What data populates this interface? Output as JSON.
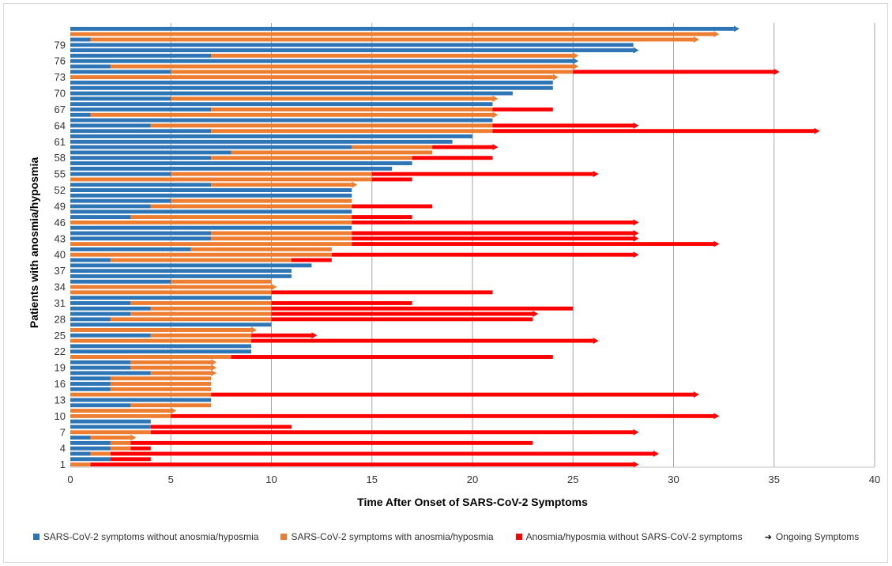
{
  "chart_data": {
    "type": "bar",
    "orientation": "horizontal-stacked",
    "xlabel": "Time After Onset of SARS-CoV-2 Symptoms",
    "ylabel": "Patients with anosmia/hyposmia",
    "xlim": [
      0,
      40
    ],
    "xticks": [
      0,
      5,
      10,
      15,
      20,
      25,
      30,
      35,
      40
    ],
    "ylim": [
      1,
      81
    ],
    "yticks": [
      1,
      4,
      7,
      10,
      13,
      16,
      19,
      22,
      25,
      28,
      31,
      34,
      37,
      40,
      43,
      46,
      49,
      52,
      55,
      58,
      61,
      64,
      67,
      70,
      73,
      76,
      79
    ],
    "grid": "vertical",
    "legend_position": "bottom",
    "series": [
      {
        "name": "SARS-CoV-2 symptoms without anosmia/hyposmia",
        "color": "#2e75b6"
      },
      {
        "name": "SARS-CoV-2 symptoms with anosmia/hyposmia",
        "color": "#ed7d31"
      },
      {
        "name": "Anosmia/hyposmia without SARS-CoV-2 symptoms",
        "color": "#ff0000"
      }
    ],
    "ongoing_label": "Ongoing Symptoms",
    "patients": [
      {
        "id": 1,
        "blue": 0,
        "orange": 1,
        "red": 27,
        "ongoing": true
      },
      {
        "id": 2,
        "blue": 2,
        "orange": 0,
        "red": 2,
        "ongoing": false
      },
      {
        "id": 3,
        "blue": 1,
        "orange": 1,
        "red": 27,
        "ongoing": true
      },
      {
        "id": 4,
        "blue": 2,
        "orange": 1,
        "red": 1,
        "ongoing": false
      },
      {
        "id": 5,
        "blue": 2,
        "orange": 1,
        "red": 20,
        "ongoing": false
      },
      {
        "id": 6,
        "blue": 1,
        "orange": 2,
        "red": 0,
        "ongoing": true
      },
      {
        "id": 7,
        "blue": 0,
        "orange": 4,
        "red": 24,
        "ongoing": true
      },
      {
        "id": 8,
        "blue": 4,
        "orange": 0,
        "red": 7,
        "ongoing": false
      },
      {
        "id": 9,
        "blue": 4,
        "orange": 0,
        "red": 0,
        "ongoing": false
      },
      {
        "id": 10,
        "blue": 0,
        "orange": 5,
        "red": 27,
        "ongoing": true
      },
      {
        "id": 11,
        "blue": 0,
        "orange": 5,
        "red": 0,
        "ongoing": true
      },
      {
        "id": 12,
        "blue": 3,
        "orange": 4,
        "red": 0,
        "ongoing": false
      },
      {
        "id": 13,
        "blue": 7,
        "orange": 0,
        "red": 0,
        "ongoing": false
      },
      {
        "id": 14,
        "blue": 0,
        "orange": 7,
        "red": 24,
        "ongoing": true
      },
      {
        "id": 15,
        "blue": 2,
        "orange": 5,
        "red": 0,
        "ongoing": false
      },
      {
        "id": 16,
        "blue": 2,
        "orange": 5,
        "red": 0,
        "ongoing": false
      },
      {
        "id": 17,
        "blue": 2,
        "orange": 5,
        "red": 0,
        "ongoing": false
      },
      {
        "id": 18,
        "blue": 4,
        "orange": 3,
        "red": 0,
        "ongoing": true
      },
      {
        "id": 19,
        "blue": 3,
        "orange": 4,
        "red": 0,
        "ongoing": true
      },
      {
        "id": 20,
        "blue": 3,
        "orange": 4,
        "red": 0,
        "ongoing": true
      },
      {
        "id": 21,
        "blue": 0,
        "orange": 8,
        "red": 16,
        "ongoing": false
      },
      {
        "id": 22,
        "blue": 9,
        "orange": 0,
        "red": 0,
        "ongoing": false
      },
      {
        "id": 23,
        "blue": 9,
        "orange": 0,
        "red": 0,
        "ongoing": false
      },
      {
        "id": 24,
        "blue": 0,
        "orange": 9,
        "red": 17,
        "ongoing": true
      },
      {
        "id": 25,
        "blue": 4,
        "orange": 5,
        "red": 3,
        "ongoing": true
      },
      {
        "id": 26,
        "blue": 0,
        "orange": 9,
        "red": 0,
        "ongoing": true
      },
      {
        "id": 27,
        "blue": 10,
        "orange": 0,
        "red": 0,
        "ongoing": false
      },
      {
        "id": 28,
        "blue": 2,
        "orange": 8,
        "red": 13,
        "ongoing": false
      },
      {
        "id": 29,
        "blue": 3,
        "orange": 7,
        "red": 13,
        "ongoing": true
      },
      {
        "id": 30,
        "blue": 4,
        "orange": 6,
        "red": 15,
        "ongoing": false
      },
      {
        "id": 31,
        "blue": 3,
        "orange": 7,
        "red": 7,
        "ongoing": false
      },
      {
        "id": 32,
        "blue": 10,
        "orange": 0,
        "red": 0,
        "ongoing": false
      },
      {
        "id": 33,
        "blue": 0,
        "orange": 10,
        "red": 11,
        "ongoing": false
      },
      {
        "id": 34,
        "blue": 0,
        "orange": 10,
        "red": 0,
        "ongoing": true
      },
      {
        "id": 35,
        "blue": 5,
        "orange": 5,
        "red": 0,
        "ongoing": false
      },
      {
        "id": 36,
        "blue": 11,
        "orange": 0,
        "red": 0,
        "ongoing": false
      },
      {
        "id": 37,
        "blue": 11,
        "orange": 0,
        "red": 0,
        "ongoing": false
      },
      {
        "id": 38,
        "blue": 12,
        "orange": 0,
        "red": 0,
        "ongoing": false
      },
      {
        "id": 39,
        "blue": 2,
        "orange": 9,
        "red": 2,
        "ongoing": false
      },
      {
        "id": 40,
        "blue": 0,
        "orange": 13,
        "red": 15,
        "ongoing": true
      },
      {
        "id": 41,
        "blue": 6,
        "orange": 7,
        "red": 0,
        "ongoing": false
      },
      {
        "id": 42,
        "blue": 0,
        "orange": 14,
        "red": 18,
        "ongoing": true
      },
      {
        "id": 43,
        "blue": 7,
        "orange": 7,
        "red": 14,
        "ongoing": true
      },
      {
        "id": 44,
        "blue": 7,
        "orange": 7,
        "red": 14,
        "ongoing": true
      },
      {
        "id": 45,
        "blue": 14,
        "orange": 0,
        "red": 0,
        "ongoing": false
      },
      {
        "id": 46,
        "blue": 0,
        "orange": 14,
        "red": 14,
        "ongoing": true
      },
      {
        "id": 47,
        "blue": 3,
        "orange": 11,
        "red": 3,
        "ongoing": false
      },
      {
        "id": 48,
        "blue": 14,
        "orange": 0,
        "red": 0,
        "ongoing": false
      },
      {
        "id": 49,
        "blue": 4,
        "orange": 10,
        "red": 4,
        "ongoing": false
      },
      {
        "id": 50,
        "blue": 5,
        "orange": 9,
        "red": 0,
        "ongoing": false
      },
      {
        "id": 51,
        "blue": 14,
        "orange": 0,
        "red": 0,
        "ongoing": false
      },
      {
        "id": 52,
        "blue": 14,
        "orange": 0,
        "red": 0,
        "ongoing": false
      },
      {
        "id": 53,
        "blue": 7,
        "orange": 7,
        "red": 0,
        "ongoing": true
      },
      {
        "id": 54,
        "blue": 0,
        "orange": 15,
        "red": 2,
        "ongoing": false
      },
      {
        "id": 55,
        "blue": 5,
        "orange": 10,
        "red": 11,
        "ongoing": true
      },
      {
        "id": 56,
        "blue": 16,
        "orange": 0,
        "red": 0,
        "ongoing": false
      },
      {
        "id": 57,
        "blue": 17,
        "orange": 0,
        "red": 0,
        "ongoing": false
      },
      {
        "id": 58,
        "blue": 7,
        "orange": 10,
        "red": 4,
        "ongoing": false
      },
      {
        "id": 59,
        "blue": 8,
        "orange": 10,
        "red": 0,
        "ongoing": false
      },
      {
        "id": 60,
        "blue": 14,
        "orange": 4,
        "red": 3,
        "ongoing": true
      },
      {
        "id": 61,
        "blue": 19,
        "orange": 0,
        "red": 0,
        "ongoing": false
      },
      {
        "id": 62,
        "blue": 20,
        "orange": 0,
        "red": 0,
        "ongoing": false
      },
      {
        "id": 63,
        "blue": 7,
        "orange": 14,
        "red": 16,
        "ongoing": true
      },
      {
        "id": 64,
        "blue": 4,
        "orange": 17,
        "red": 7,
        "ongoing": true
      },
      {
        "id": 65,
        "blue": 21,
        "orange": 0,
        "red": 0,
        "ongoing": false
      },
      {
        "id": 66,
        "blue": 1,
        "orange": 20,
        "red": 0,
        "ongoing": true
      },
      {
        "id": 67,
        "blue": 7,
        "orange": 14,
        "red": 3,
        "ongoing": false
      },
      {
        "id": 68,
        "blue": 21,
        "orange": 0,
        "red": 0,
        "ongoing": false
      },
      {
        "id": 69,
        "blue": 5,
        "orange": 16,
        "red": 0,
        "ongoing": true
      },
      {
        "id": 70,
        "blue": 22,
        "orange": 0,
        "red": 0,
        "ongoing": false
      },
      {
        "id": 71,
        "blue": 24,
        "orange": 0,
        "red": 0,
        "ongoing": false
      },
      {
        "id": 72,
        "blue": 24,
        "orange": 0,
        "red": 0,
        "ongoing": false
      },
      {
        "id": 73,
        "blue": 0,
        "orange": 24,
        "red": 0,
        "ongoing": true
      },
      {
        "id": 74,
        "blue": 5,
        "orange": 20,
        "red": 10,
        "ongoing": true
      },
      {
        "id": 75,
        "blue": 2,
        "orange": 23,
        "red": 0,
        "ongoing": true
      },
      {
        "id": 76,
        "blue": 25,
        "orange": 0,
        "red": 0,
        "ongoing": true
      },
      {
        "id": 77,
        "blue": 7,
        "orange": 18,
        "red": 0,
        "ongoing": true
      },
      {
        "id": 78,
        "blue": 28,
        "orange": 0,
        "red": 0,
        "ongoing": true
      },
      {
        "id": 79,
        "blue": 28,
        "orange": 0,
        "red": 0,
        "ongoing": false
      },
      {
        "id": 80,
        "blue": 1,
        "orange": 30,
        "red": 0,
        "ongoing": true
      },
      {
        "id": 81,
        "blue": 0,
        "orange": 32,
        "red": 0,
        "ongoing": true
      },
      {
        "id": 82,
        "blue": 33,
        "orange": 0,
        "red": 0,
        "ongoing": true
      }
    ]
  }
}
